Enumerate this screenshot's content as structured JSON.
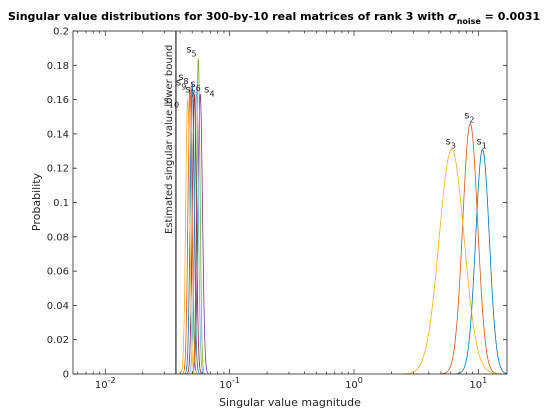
{
  "chart_data": {
    "type": "line",
    "title_main": "Singular value distributions for 300-by-10 real matrices of rank 3 with ",
    "title_sigma": "σ",
    "title_sub": "noise",
    "title_tail": " = 0.0031",
    "xlabel": "Singular value magnitude",
    "ylabel": "Probability",
    "xscale": "log",
    "xlim": [
      0.0055,
      17
    ],
    "ylim": [
      0,
      0.2
    ],
    "xticks": [
      {
        "value": 0.01,
        "base": "10",
        "exp": "-2"
      },
      {
        "value": 0.1,
        "base": "10",
        "exp": "-1"
      },
      {
        "value": 1,
        "base": "10",
        "exp": "0"
      },
      {
        "value": 10,
        "base": "10",
        "exp": "1"
      }
    ],
    "yticks": [
      "0",
      "0.02",
      "0.04",
      "0.06",
      "0.08",
      "0.1",
      "0.12",
      "0.14",
      "0.16",
      "0.18",
      "0.2"
    ],
    "lower_bound": {
      "x": 0.037,
      "label": "Estimated singular value lower bound"
    },
    "series": [
      {
        "label_base": "s",
        "label_sub": "1",
        "color": "#0072BD",
        "peak_x": 10.8,
        "peak_y": 0.131,
        "width": 0.055
      },
      {
        "label_base": "s",
        "label_sub": "2",
        "color": "#D95319",
        "peak_x": 8.6,
        "peak_y": 0.146,
        "width": 0.06
      },
      {
        "label_base": "s",
        "label_sub": "3",
        "color": "#EDB120",
        "peak_x": 6.1,
        "peak_y": 0.131,
        "width": 0.1
      },
      {
        "label_base": "s",
        "label_sub": "4",
        "color": "#7E2F8E",
        "peak_x": 0.058,
        "peak_y": 0.163,
        "width": 0.018
      },
      {
        "label_base": "s",
        "label_sub": "5",
        "color": "#77AC30",
        "peak_x": 0.056,
        "peak_y": 0.184,
        "width": 0.014
      },
      {
        "label_base": "s",
        "label_sub": "6",
        "color": "#4DBEEE",
        "peak_x": 0.054,
        "peak_y": 0.165,
        "width": 0.016
      },
      {
        "label_base": "s",
        "label_sub": "7",
        "color": "#A2142F",
        "peak_x": 0.052,
        "peak_y": 0.163,
        "width": 0.016
      },
      {
        "label_base": "s",
        "label_sub": "8",
        "color": "#0072BD",
        "peak_x": 0.05,
        "peak_y": 0.169,
        "width": 0.016
      },
      {
        "label_base": "s",
        "label_sub": "9",
        "color": "#D95319",
        "peak_x": 0.048,
        "peak_y": 0.167,
        "width": 0.016
      },
      {
        "label_base": "s",
        "label_sub": "10",
        "color": "#EDB120",
        "peak_x": 0.046,
        "peak_y": 0.16,
        "width": 0.016
      }
    ]
  }
}
